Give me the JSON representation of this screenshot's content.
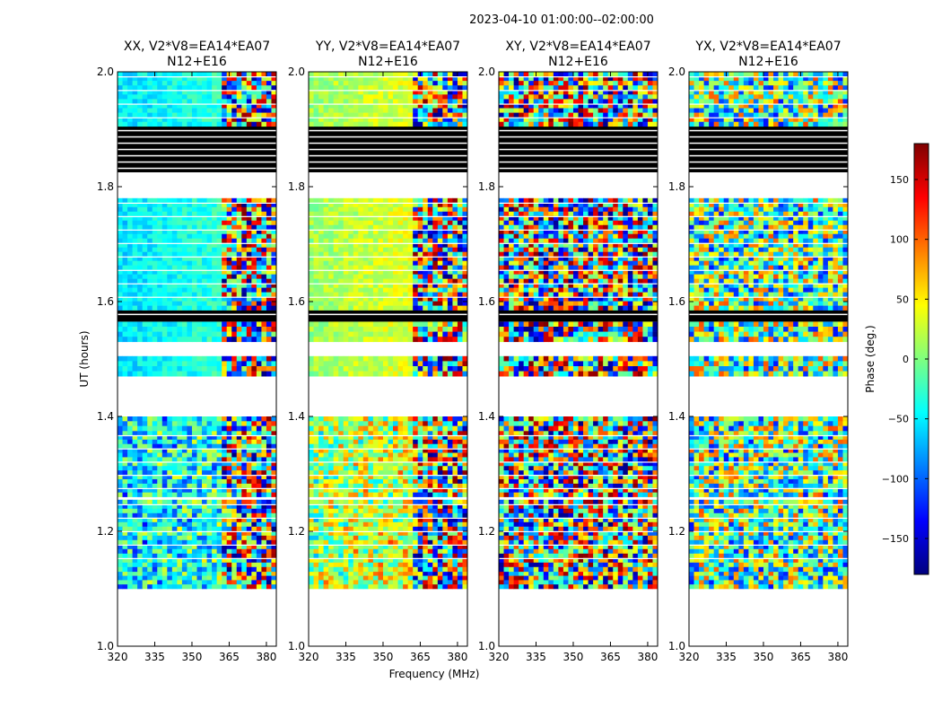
{
  "suptitle": "2023-04-10  01:00:00--02:00:00",
  "colors": {
    "flag": "#000000",
    "blank": "#ffffff",
    "axis": "#000000"
  },
  "chart_data": {
    "type": "heatmap",
    "suptitle": "2023-04-10  01:00:00--02:00:00",
    "ylabel": "UT (hours)",
    "xlabel": "Frequency (MHz)",
    "xlim": [
      320,
      384
    ],
    "ylim": [
      1.0,
      2.0
    ],
    "xticks": [
      "320",
      "335",
      "350",
      "365",
      "380"
    ],
    "yticks": [
      "1.0",
      "1.2",
      "1.4",
      "1.6",
      "1.8",
      "2.0"
    ],
    "colorbar": {
      "label": "Phase (deg.)",
      "range": [
        -180,
        180
      ],
      "ticks": [
        "150",
        "100",
        "50",
        "0",
        "−50",
        "−100",
        "−150"
      ],
      "colormap": "jet"
    },
    "panels": [
      {
        "title_line1": "XX, V2*V8=EA14*EA07",
        "title_line2": "N12+E16",
        "base_phase": -35,
        "spread": 22,
        "mode": "coherent"
      },
      {
        "title_line1": "YY, V2*V8=EA14*EA07",
        "title_line2": "N12+E16",
        "base_phase": 30,
        "spread": 22,
        "mode": "coherent"
      },
      {
        "title_line1": "XY, V2*V8=EA14*EA07",
        "title_line2": "N12+E16",
        "base_phase": 0,
        "spread": 180,
        "mode": "noise"
      },
      {
        "title_line1": "YX, V2*V8=EA14*EA07",
        "title_line2": "N12+E16",
        "base_phase": -10,
        "spread": 120,
        "mode": "noise"
      }
    ],
    "time_segments": [
      {
        "ut_start": 1.1,
        "ut_end": 1.13,
        "state": "data"
      },
      {
        "ut_start": 1.13,
        "ut_end": 1.255,
        "state": "data"
      },
      {
        "ut_start": 1.26,
        "ut_end": 1.375,
        "state": "data"
      },
      {
        "ut_start": 1.375,
        "ut_end": 1.4,
        "state": "data"
      },
      {
        "ut_start": 1.47,
        "ut_end": 1.505,
        "state": "data"
      },
      {
        "ut_start": 1.53,
        "ut_end": 1.565,
        "state": "data"
      },
      {
        "ut_start": 1.565,
        "ut_end": 1.585,
        "state": "flagged"
      },
      {
        "ut_start": 1.585,
        "ut_end": 1.78,
        "state": "data"
      },
      {
        "ut_start": 1.825,
        "ut_end": 1.905,
        "state": "flagged"
      },
      {
        "ut_start": 1.905,
        "ut_end": 2.0,
        "state": "data"
      }
    ]
  }
}
